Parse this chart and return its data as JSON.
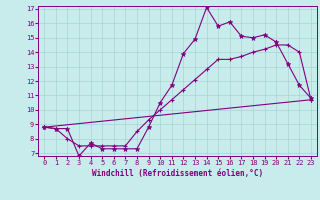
{
  "title": "",
  "xlabel": "Windchill (Refroidissement éolien,°C)",
  "ylabel": "",
  "background_color": "#c8ecec",
  "line_color": "#800080",
  "grid_color": "#a8d4d4",
  "xlim": [
    -0.5,
    23.5
  ],
  "ylim": [
    6.8,
    17.2
  ],
  "xticks": [
    0,
    1,
    2,
    3,
    4,
    5,
    6,
    7,
    8,
    9,
    10,
    11,
    12,
    13,
    14,
    15,
    16,
    17,
    18,
    19,
    20,
    21,
    22,
    23
  ],
  "yticks": [
    7,
    8,
    9,
    10,
    11,
    12,
    13,
    14,
    15,
    16,
    17
  ],
  "series1_x": [
    0,
    1,
    2,
    3,
    4,
    5,
    6,
    7,
    8,
    9,
    10,
    11,
    12,
    13,
    14,
    15,
    16,
    17,
    18,
    19,
    20,
    21,
    22,
    23
  ],
  "series1_y": [
    8.8,
    8.7,
    8.7,
    6.8,
    7.7,
    7.3,
    7.3,
    7.3,
    7.3,
    8.8,
    10.5,
    11.7,
    13.9,
    14.9,
    17.1,
    15.8,
    16.1,
    15.1,
    15.0,
    15.2,
    14.7,
    13.2,
    11.7,
    10.8
  ],
  "series2_x": [
    0,
    1,
    2,
    3,
    4,
    5,
    6,
    7,
    8,
    9,
    10,
    11,
    12,
    13,
    14,
    15,
    16,
    17,
    18,
    19,
    20,
    21,
    22,
    23
  ],
  "series2_y": [
    8.8,
    8.7,
    8.0,
    7.5,
    7.5,
    7.5,
    7.5,
    7.5,
    8.5,
    9.3,
    10.0,
    10.7,
    11.4,
    12.1,
    12.8,
    13.5,
    13.5,
    13.7,
    14.0,
    14.2,
    14.5,
    14.5,
    14.0,
    10.7
  ],
  "series3_x": [
    0,
    23
  ],
  "series3_y": [
    8.8,
    10.7
  ],
  "xlabel_fontsize": 5.5,
  "tick_fontsize": 5.0,
  "linewidth": 0.8,
  "markersize_star": 3.5,
  "markersize_plus": 3.5
}
